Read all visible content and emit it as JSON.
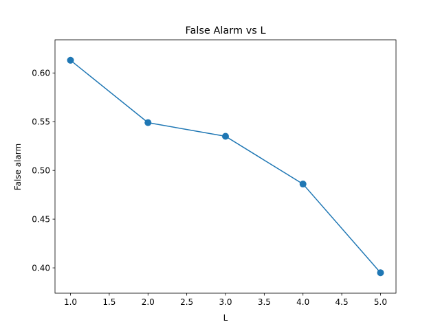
{
  "chart_data": {
    "type": "line",
    "title": "False Alarm vs L",
    "xlabel": "L",
    "ylabel": "False alarm",
    "xlim": [
      0.8,
      5.2
    ],
    "ylim": [
      0.374,
      0.634
    ],
    "x_ticks": [
      1.0,
      1.5,
      2.0,
      2.5,
      3.0,
      3.5,
      4.0,
      4.5,
      5.0
    ],
    "x_tick_labels": [
      "1.0",
      "1.5",
      "2.0",
      "2.5",
      "3.0",
      "3.5",
      "4.0",
      "4.5",
      "5.0"
    ],
    "y_ticks": [
      0.4,
      0.45,
      0.5,
      0.55,
      0.6
    ],
    "y_tick_labels": [
      "0.40",
      "0.45",
      "0.50",
      "0.55",
      "0.60"
    ],
    "grid": false,
    "series": [
      {
        "x": [
          1,
          2,
          3,
          4,
          5
        ],
        "y": [
          0.613,
          0.549,
          0.535,
          0.486,
          0.395
        ],
        "color": "#1f77b4",
        "marker": "circle"
      }
    ]
  }
}
